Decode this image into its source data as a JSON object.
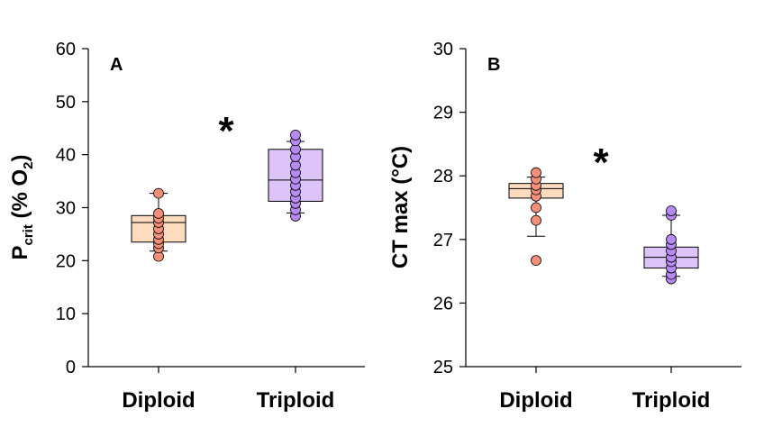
{
  "chart_data": [
    {
      "type": "box",
      "panel_label": "A",
      "ylabel": {
        "main": "P",
        "sub": "crit",
        "rest": " (% O",
        "sub2": "2",
        "end": ")"
      },
      "ylim": [
        0,
        60
      ],
      "yticks": [
        0,
        10,
        20,
        30,
        40,
        50,
        60
      ],
      "categories": [
        "Diploid",
        "Triploid"
      ],
      "significance": "*",
      "boxes": [
        {
          "category": "Diploid",
          "whisker_low": 21.8,
          "q1": 23.5,
          "median": 27.2,
          "q3": 28.5,
          "whisker_high": 32.7,
          "points": [
            20.8,
            22.4,
            23.2,
            24.0,
            25.0,
            26.0,
            27.2,
            28.0,
            28.9,
            32.7
          ],
          "fill": "#FDDCC0",
          "point_color": "#F4907A"
        },
        {
          "category": "Triploid",
          "whisker_low": 29.0,
          "q1": 31.2,
          "median": 35.2,
          "q3": 41.0,
          "whisker_high": 42.5,
          "points": [
            28.4,
            29.6,
            30.8,
            31.8,
            33.0,
            34.2,
            35.4,
            36.6,
            38.0,
            39.6,
            41.0,
            42.6,
            43.7
          ],
          "fill": "#DCC4F8",
          "point_color": "#B68AF0"
        }
      ]
    },
    {
      "type": "box",
      "panel_label": "B",
      "ylabel": {
        "main": "CT max (°C)"
      },
      "ylim": [
        25,
        30
      ],
      "yticks": [
        25,
        26,
        27,
        28,
        29,
        30
      ],
      "categories": [
        "Diploid",
        "Triploid"
      ],
      "significance": "*",
      "boxes": [
        {
          "category": "Diploid",
          "whisker_low": 27.05,
          "q1": 27.65,
          "median": 27.8,
          "q3": 27.88,
          "whisker_high": 27.98,
          "points": [
            26.67,
            27.3,
            27.5,
            27.68,
            27.78,
            27.85,
            27.95,
            28.05
          ],
          "fill": "#FDDCC0",
          "point_color": "#F4907A"
        },
        {
          "category": "Triploid",
          "whisker_low": 26.42,
          "q1": 26.55,
          "median": 26.72,
          "q3": 26.88,
          "whisker_high": 27.38,
          "points": [
            26.38,
            26.45,
            26.55,
            26.65,
            26.72,
            26.82,
            26.92,
            27.0,
            27.38,
            27.45
          ],
          "fill": "#DCC4F8",
          "point_color": "#B68AF0"
        }
      ]
    }
  ]
}
